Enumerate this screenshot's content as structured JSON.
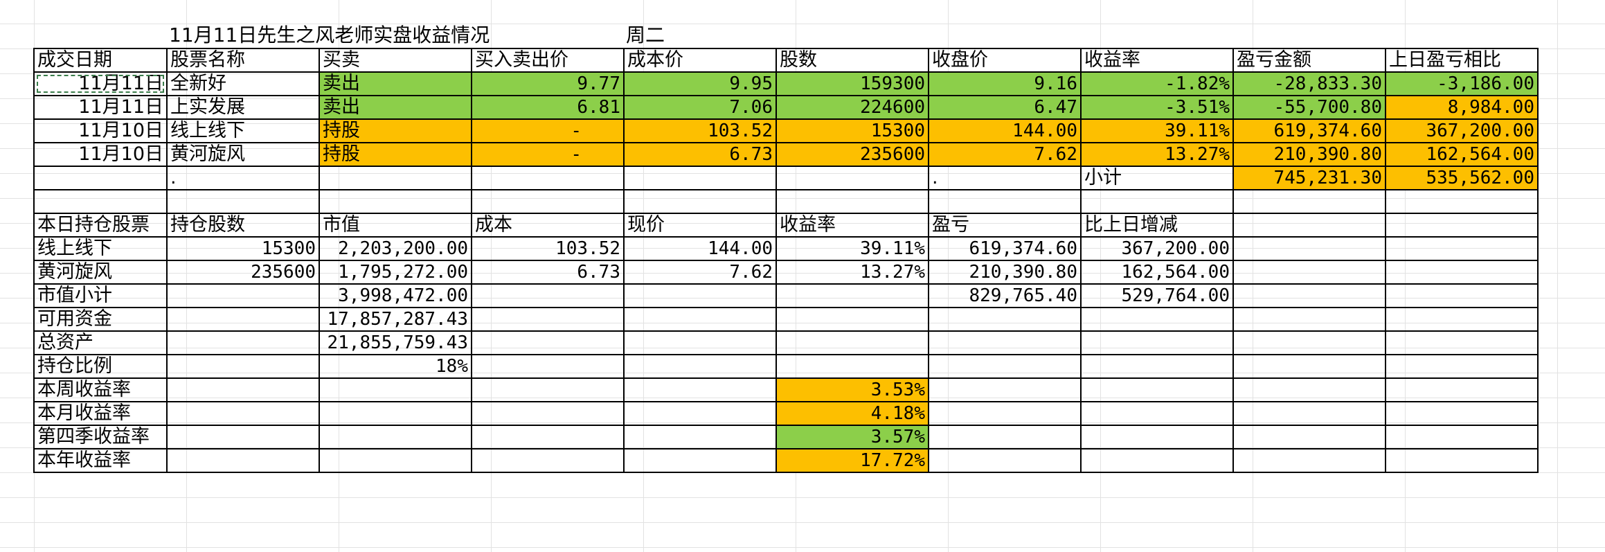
{
  "header": {
    "title": "11月11日先生之风老师实盘收益情况",
    "weekday": "周二"
  },
  "trades": {
    "columns": [
      "成交日期",
      "股票名称",
      "买卖",
      "买入卖出价",
      "成本价",
      "股数",
      "收盘价",
      "收益率",
      "盈亏金额",
      "上日盈亏相比"
    ],
    "rows": [
      [
        "11月11日",
        "全新好",
        "卖出",
        "9.77",
        "9.95",
        "159300",
        "9.16",
        "-1.82%",
        "-28,833.30",
        "-3,186.00"
      ],
      [
        "11月11日",
        "上实发展",
        "卖出",
        "6.81",
        "7.06",
        "224600",
        "6.47",
        "-3.51%",
        "-55,700.80",
        "8,984.00"
      ],
      [
        "11月10日",
        "线上线下",
        "持股",
        "-",
        "103.52",
        "15300",
        "144.00",
        "39.11%",
        "619,374.60",
        "367,200.00"
      ],
      [
        "11月10日",
        "黄河旋风",
        "持股",
        "-",
        "6.73",
        "235600",
        "7.62",
        "13.27%",
        "210,390.80",
        "162,564.00"
      ]
    ],
    "subtotal": {
      "dot1": ".",
      "dot2": ".",
      "label": "小计",
      "pnl": "745,231.30",
      "vs_prev": "535,562.00"
    }
  },
  "holdings": {
    "columns": [
      "本日持仓股票",
      "持仓股数",
      "市值",
      "成本",
      "现价",
      "收益率",
      "盈亏",
      "比上日增减"
    ],
    "rows": [
      [
        "线上线下",
        "15300",
        "2,203,200.00",
        "103.52",
        "144.00",
        "39.11%",
        "619,374.60",
        "367,200.00"
      ],
      [
        "黄河旋风",
        "235600",
        "1,795,272.00",
        "6.73",
        "7.62",
        "13.27%",
        "210,390.80",
        "162,564.00"
      ]
    ],
    "market_value_subtotal": {
      "label": "市值小计",
      "value": "3,998,472.00",
      "pnl": "829,765.40",
      "change": "529,764.00"
    },
    "available_funds": {
      "label": "可用资金",
      "value": "17,857,287.43"
    },
    "total_assets": {
      "label": "总资产",
      "value": "21,855,759.43"
    },
    "position_ratio": {
      "label": "持仓比例",
      "value": "18%"
    }
  },
  "returns": [
    {
      "label": "本周收益率",
      "value": "3.53%",
      "color": "#fdbf00"
    },
    {
      "label": "本月收益率",
      "value": "4.18%",
      "color": "#fdbf00"
    },
    {
      "label": "第四季收益率",
      "value": "3.57%",
      "color": "#8ccf4a"
    },
    {
      "label": "本年收益率",
      "value": "17.72%",
      "color": "#fdbf00"
    }
  ],
  "colors": {
    "sell_green": "#8ccf4a",
    "hold_orange": "#fdbf00",
    "grid": "#e2e2e2"
  }
}
